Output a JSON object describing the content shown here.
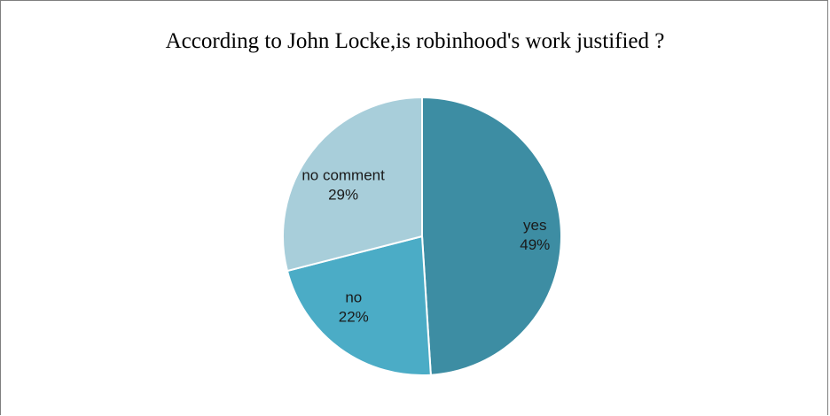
{
  "chart_data": {
    "type": "pie",
    "title": "According to John Locke,is robinhood's work justified ?",
    "slices": [
      {
        "label": "yes",
        "value": 49,
        "display": "49%",
        "color": "#3d8da3"
      },
      {
        "label": "no",
        "value": 22,
        "display": "22%",
        "color": "#4bacc6"
      },
      {
        "label": "no comment",
        "value": 29,
        "display": "29%",
        "color": "#a8ceda"
      }
    ],
    "start_angle_deg": 0,
    "direction": "clockwise",
    "legend": "none"
  }
}
